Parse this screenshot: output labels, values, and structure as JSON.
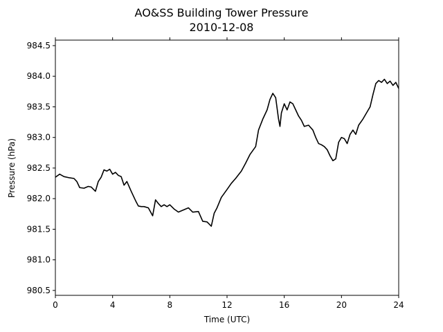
{
  "chart_data": {
    "type": "line",
    "title": "AO&SS Building Tower Pressure",
    "subtitle": "2010-12-08",
    "xlabel": "Time (UTC)",
    "ylabel": "Pressure (hPa)",
    "xlim": [
      0,
      24
    ],
    "ylim": [
      980.42,
      984.59
    ],
    "xticks": [
      0,
      4,
      8,
      12,
      16,
      20,
      24
    ],
    "xtick_labels": [
      "0",
      "4",
      "8",
      "12",
      "16",
      "20",
      "24"
    ],
    "yticks": [
      980.5,
      981.0,
      981.5,
      982.0,
      982.5,
      983.0,
      983.5,
      984.0,
      984.5
    ],
    "ytick_labels": [
      "980.5",
      "981.0",
      "981.5",
      "982.0",
      "982.5",
      "983.0",
      "983.5",
      "984.0",
      "984.5"
    ],
    "grid": false,
    "line_color": "#000000",
    "series": [
      {
        "x": [
          0.0,
          0.3,
          0.6,
          1.0,
          1.3,
          1.5,
          1.7,
          2.0,
          2.3,
          2.5,
          2.8,
          3.0,
          3.2,
          3.4,
          3.6,
          3.8,
          4.0,
          4.2,
          4.4,
          4.6,
          4.8,
          5.0,
          5.3,
          5.6,
          5.8,
          6.0,
          6.2,
          6.5,
          6.8,
          7.0,
          7.2,
          7.4,
          7.6,
          7.8,
          8.0,
          8.3,
          8.6,
          9.0,
          9.3,
          9.6,
          10.0,
          10.3,
          10.6,
          10.9,
          11.1,
          11.3,
          11.6,
          12.0,
          12.3,
          12.6,
          13.0,
          13.3,
          13.6,
          14.0,
          14.2,
          14.5,
          14.8,
          15.0,
          15.2,
          15.4,
          15.6,
          15.7,
          15.8,
          16.0,
          16.2,
          16.4,
          16.6,
          16.8,
          17.0,
          17.2,
          17.4,
          17.7,
          18.0,
          18.2,
          18.4,
          18.6,
          18.8,
          19.0,
          19.2,
          19.4,
          19.6,
          19.8,
          20.0,
          20.2,
          20.4,
          20.6,
          20.8,
          21.0,
          21.2,
          21.5,
          21.8,
          22.0,
          22.2,
          22.4,
          22.6,
          22.8,
          23.0,
          23.2,
          23.4,
          23.6,
          23.8,
          24.0
        ],
        "values": [
          982.35,
          982.4,
          982.36,
          982.34,
          982.33,
          982.28,
          982.18,
          982.17,
          982.2,
          982.19,
          982.12,
          982.28,
          982.35,
          982.47,
          982.45,
          982.48,
          982.4,
          982.43,
          982.38,
          982.36,
          982.22,
          982.28,
          982.12,
          981.97,
          981.88,
          981.87,
          981.87,
          981.85,
          981.72,
          981.98,
          981.92,
          981.87,
          981.9,
          981.87,
          981.9,
          981.83,
          981.78,
          981.82,
          981.85,
          981.78,
          981.79,
          981.63,
          981.62,
          981.55,
          981.76,
          981.85,
          982.02,
          982.15,
          982.25,
          982.33,
          982.45,
          982.58,
          982.72,
          982.85,
          983.12,
          983.3,
          983.45,
          983.62,
          983.72,
          983.65,
          983.3,
          983.18,
          983.4,
          983.55,
          983.45,
          983.58,
          983.55,
          983.45,
          983.35,
          983.28,
          983.18,
          983.2,
          983.12,
          983.0,
          982.9,
          982.88,
          982.85,
          982.8,
          982.7,
          982.62,
          982.65,
          982.92,
          983.0,
          982.98,
          982.9,
          983.05,
          983.12,
          983.05,
          983.2,
          983.3,
          983.42,
          983.5,
          983.7,
          983.88,
          983.93,
          983.9,
          983.95,
          983.88,
          983.92,
          983.85,
          983.9,
          983.8
        ]
      }
    ]
  }
}
